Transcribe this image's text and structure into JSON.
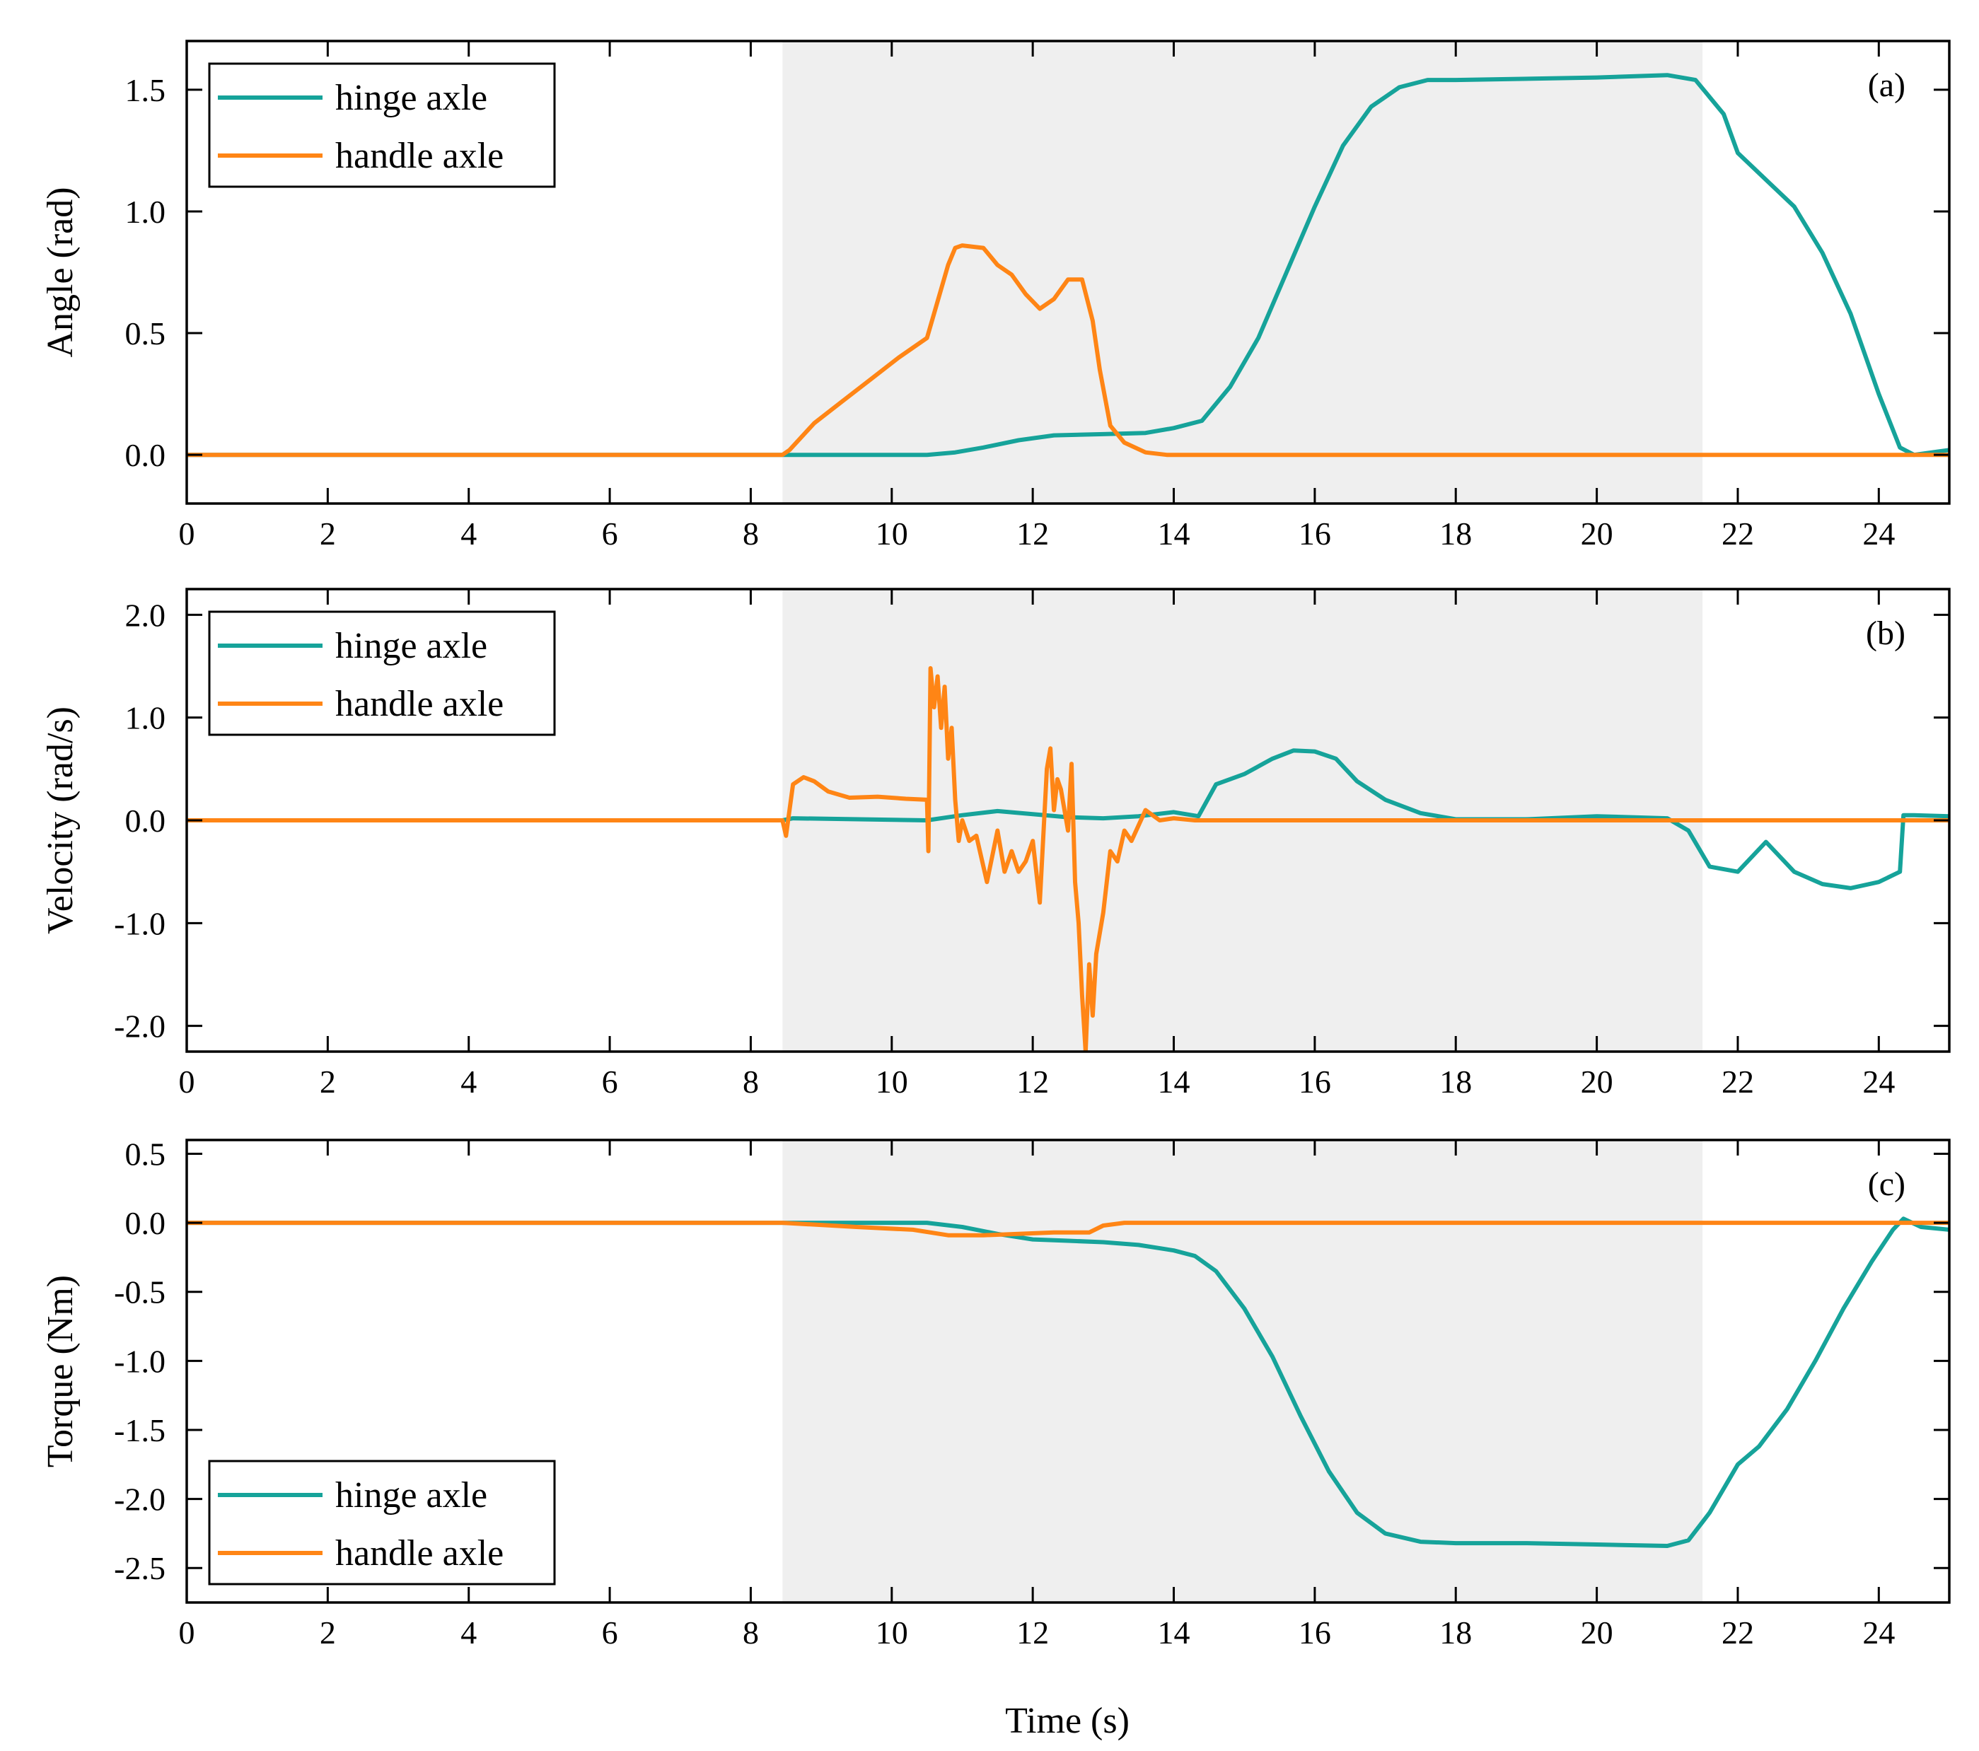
{
  "colors": {
    "hinge": "#16a39a",
    "handle": "#ff8515",
    "shade": "#efefef"
  },
  "chart_data": [
    {
      "type": "line",
      "panel_label": "(a)",
      "ylabel": "Angle (rad)",
      "xlabel": "",
      "xlim": [
        0,
        25
      ],
      "ylim": [
        -0.2,
        1.7
      ],
      "xticks": [
        0,
        2,
        4,
        6,
        8,
        10,
        12,
        14,
        16,
        18,
        20,
        22,
        24
      ],
      "xtick_labels": [
        "0",
        "2",
        "4",
        "6",
        "8",
        "10",
        "12",
        "14",
        "16",
        "18",
        "20",
        "22",
        "24"
      ],
      "yticks": [
        0.0,
        0.5,
        1.0,
        1.5
      ],
      "ytick_labels": [
        "0.0",
        "0.5",
        "1.0",
        "1.5"
      ],
      "shaded_region": [
        8.45,
        21.5
      ],
      "legend": {
        "position": "top-left",
        "entries": [
          "hinge axle",
          "handle axle"
        ]
      },
      "series": [
        {
          "name": "hinge axle",
          "color_key": "hinge",
          "x": [
            0,
            8.45,
            10.5,
            10.9,
            11.3,
            11.8,
            12.3,
            13.0,
            13.6,
            14.0,
            14.4,
            14.8,
            15.2,
            15.6,
            16.0,
            16.4,
            16.8,
            17.2,
            17.6,
            18.0,
            20.0,
            21.0,
            21.4,
            21.8,
            22.0,
            22.4,
            22.8,
            23.2,
            23.6,
            24.0,
            24.3,
            24.5,
            25
          ],
          "y": [
            0,
            0,
            0,
            0.01,
            0.03,
            0.06,
            0.08,
            0.085,
            0.09,
            0.11,
            0.14,
            0.28,
            0.48,
            0.75,
            1.02,
            1.27,
            1.43,
            1.51,
            1.54,
            1.54,
            1.55,
            1.56,
            1.54,
            1.4,
            1.24,
            1.13,
            1.02,
            0.83,
            0.58,
            0.25,
            0.03,
            0.0,
            0.02
          ]
        },
        {
          "name": "handle axle",
          "color_key": "handle",
          "x": [
            0,
            8.45,
            8.55,
            8.9,
            9.3,
            9.7,
            10.1,
            10.5,
            10.6,
            10.8,
            10.9,
            11.0,
            11.3,
            11.5,
            11.7,
            11.9,
            12.1,
            12.3,
            12.5,
            12.7,
            12.85,
            12.95,
            13.1,
            13.3,
            13.6,
            13.9,
            25
          ],
          "y": [
            0,
            0,
            0.02,
            0.13,
            0.22,
            0.31,
            0.4,
            0.48,
            0.58,
            0.78,
            0.85,
            0.86,
            0.85,
            0.78,
            0.74,
            0.66,
            0.6,
            0.64,
            0.72,
            0.72,
            0.55,
            0.35,
            0.12,
            0.05,
            0.01,
            0,
            0
          ]
        }
      ]
    },
    {
      "type": "line",
      "panel_label": "(b)",
      "ylabel": "Velocity (rad/s)",
      "xlabel": "",
      "xlim": [
        0,
        25
      ],
      "ylim": [
        -2.25,
        2.25
      ],
      "xticks": [
        0,
        2,
        4,
        6,
        8,
        10,
        12,
        14,
        16,
        18,
        20,
        22,
        24
      ],
      "xtick_labels": [
        "0",
        "2",
        "4",
        "6",
        "8",
        "10",
        "12",
        "14",
        "16",
        "18",
        "20",
        "22",
        "24"
      ],
      "yticks": [
        2.0,
        1.0,
        0.0,
        -1.0,
        -2.0
      ],
      "ytick_labels": [
        "2.0",
        "1.0",
        "0.0",
        "-1.0",
        "-2.0"
      ],
      "shaded_region": [
        8.45,
        21.5
      ],
      "legend": {
        "position": "top-left",
        "entries": [
          "hinge axle",
          "handle axle"
        ]
      },
      "series": [
        {
          "name": "hinge axle",
          "color_key": "hinge",
          "x": [
            0,
            8.45,
            8.6,
            10.5,
            11.0,
            11.5,
            12.0,
            12.5,
            13.0,
            13.5,
            14.0,
            14.35,
            14.6,
            15.0,
            15.4,
            15.7,
            16.0,
            16.3,
            16.6,
            17.0,
            17.5,
            18.0,
            19.0,
            20.0,
            21.0,
            21.3,
            21.6,
            22.0,
            22.4,
            22.8,
            23.2,
            23.6,
            24.0,
            24.3,
            24.35,
            24.5,
            25
          ],
          "y": [
            0,
            0,
            0.02,
            0.0,
            0.05,
            0.09,
            0.06,
            0.03,
            0.02,
            0.04,
            0.08,
            0.04,
            0.35,
            0.45,
            0.6,
            0.68,
            0.67,
            0.6,
            0.38,
            0.2,
            0.07,
            0.01,
            0.01,
            0.04,
            0.02,
            -0.1,
            -0.45,
            -0.5,
            -0.21,
            -0.5,
            -0.62,
            -0.66,
            -0.6,
            -0.5,
            0.05,
            0.05,
            0.04
          ]
        },
        {
          "name": "handle axle",
          "color_key": "handle",
          "x": [
            0,
            8.45,
            8.5,
            8.6,
            8.75,
            8.9,
            9.1,
            9.4,
            9.8,
            10.2,
            10.5,
            10.52,
            10.55,
            10.6,
            10.65,
            10.7,
            10.75,
            10.8,
            10.85,
            10.9,
            10.95,
            11.0,
            11.1,
            11.2,
            11.35,
            11.5,
            11.6,
            11.7,
            11.8,
            11.9,
            12.0,
            12.1,
            12.2,
            12.25,
            12.3,
            12.35,
            12.4,
            12.5,
            12.55,
            12.6,
            12.65,
            12.7,
            12.75,
            12.8,
            12.85,
            12.9,
            13.0,
            13.1,
            13.2,
            13.3,
            13.4,
            13.5,
            13.6,
            13.8,
            14.0,
            14.3,
            25
          ],
          "y": [
            0,
            0,
            -0.15,
            0.35,
            0.42,
            0.38,
            0.28,
            0.22,
            0.23,
            0.21,
            0.2,
            -0.3,
            1.48,
            1.1,
            1.4,
            0.9,
            1.3,
            0.6,
            0.9,
            0.2,
            -0.2,
            0.0,
            -0.2,
            -0.15,
            -0.6,
            -0.1,
            -0.5,
            -0.3,
            -0.5,
            -0.4,
            -0.2,
            -0.8,
            0.5,
            0.7,
            0.1,
            0.4,
            0.3,
            -0.1,
            0.55,
            -0.6,
            -1.0,
            -1.7,
            -2.25,
            -1.4,
            -1.9,
            -1.3,
            -0.9,
            -0.3,
            -0.4,
            -0.1,
            -0.2,
            -0.05,
            0.1,
            0.0,
            0.02,
            0.0,
            0
          ]
        }
      ]
    },
    {
      "type": "line",
      "panel_label": "(c)",
      "ylabel": "Torque (Nm)",
      "xlabel": "Time (s)",
      "xlim": [
        0,
        25
      ],
      "ylim": [
        -2.75,
        0.6
      ],
      "xticks": [
        0,
        2,
        4,
        6,
        8,
        10,
        12,
        14,
        16,
        18,
        20,
        22,
        24
      ],
      "xtick_labels": [
        "0",
        "2",
        "4",
        "6",
        "8",
        "10",
        "12",
        "14",
        "16",
        "18",
        "20",
        "22",
        "24"
      ],
      "yticks": [
        0.5,
        0.0,
        -0.5,
        -1.0,
        -1.5,
        -2.0,
        -2.5
      ],
      "ytick_labels": [
        "0.5",
        "0.0",
        "-0.5",
        "-1.0",
        "-1.5",
        "-2.0",
        "-2.5"
      ],
      "shaded_region": [
        8.45,
        21.5
      ],
      "legend": {
        "position": "bottom-left",
        "entries": [
          "hinge axle",
          "handle axle"
        ]
      },
      "series": [
        {
          "name": "hinge axle",
          "color_key": "hinge",
          "x": [
            0,
            8.45,
            10.5,
            11.0,
            11.5,
            12.0,
            12.5,
            13.0,
            13.5,
            14.0,
            14.3,
            14.6,
            15.0,
            15.4,
            15.8,
            16.2,
            16.6,
            17.0,
            17.5,
            18.0,
            19.0,
            20.0,
            21.0,
            21.3,
            21.6,
            22.0,
            22.3,
            22.7,
            23.1,
            23.5,
            23.9,
            24.2,
            24.35,
            24.6,
            25
          ],
          "y": [
            0,
            0,
            0,
            -0.03,
            -0.08,
            -0.12,
            -0.13,
            -0.14,
            -0.16,
            -0.2,
            -0.24,
            -0.35,
            -0.62,
            -0.97,
            -1.4,
            -1.8,
            -2.1,
            -2.25,
            -2.31,
            -2.32,
            -2.32,
            -2.33,
            -2.34,
            -2.3,
            -2.1,
            -1.75,
            -1.62,
            -1.35,
            -1.0,
            -0.62,
            -0.28,
            -0.05,
            0.03,
            -0.03,
            -0.05
          ]
        },
        {
          "name": "handle axle",
          "color_key": "handle",
          "x": [
            0,
            8.45,
            9.5,
            10.3,
            10.8,
            11.3,
            11.8,
            12.3,
            12.8,
            13.0,
            13.3,
            25
          ],
          "y": [
            0,
            0,
            -0.03,
            -0.05,
            -0.09,
            -0.09,
            -0.08,
            -0.07,
            -0.07,
            -0.02,
            0,
            0
          ]
        }
      ]
    }
  ]
}
